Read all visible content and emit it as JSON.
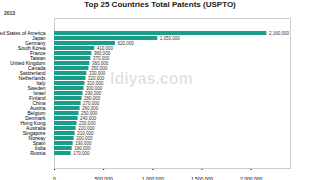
{
  "chart_data": {
    "type": "bar",
    "title": "Top 25 Countries Total Patents (USPTO)",
    "subtitle": "2013",
    "annotation": "ldiyas.com",
    "orientation": "horizontal",
    "color": "#1a9e8a",
    "data_labels": true,
    "grid": false,
    "categories": [
      "United States of America",
      "Japan",
      "Germany",
      "South Korea",
      "France",
      "Taiwan",
      "United Kingdom",
      "Canada",
      "Switzerland",
      "Netherlands",
      "Italy",
      "Sweden",
      "Israel",
      "Finland",
      "China",
      "Austria",
      "Belgium",
      "Denmark",
      "Hong Kong",
      "Australia",
      "Singapore",
      "Norway",
      "Spain",
      "India",
      "Russia"
    ],
    "values": [
      2160000,
      1050000,
      620000,
      410000,
      380000,
      370000,
      360000,
      350000,
      330000,
      320000,
      310000,
      300000,
      290000,
      280000,
      270000,
      260000,
      250000,
      240000,
      230000,
      220000,
      210000,
      200000,
      190000,
      180000,
      170000
    ],
    "value_labels": [
      "2,160,000",
      "1,050,000",
      "620,000",
      "410,000",
      "380,000",
      "370,000",
      "360,000",
      "350,000",
      "330,000",
      "320,000",
      "310,000",
      "300,000",
      "290,000",
      "280,000",
      "270,000",
      "260,000",
      "250,000",
      "240,000",
      "230,000",
      "220,000",
      "210,000",
      "200,000",
      "190,000",
      "180,000",
      "170,000"
    ],
    "xlim": [
      0,
      2400000
    ],
    "xticks": [
      0,
      {
        "value": 500000,
        "label": "500,000"
      },
      {
        "value": 1000000,
        "label": "1,000,000"
      },
      {
        "value": 1500000,
        "label": "1,500,000"
      },
      {
        "value": 2000000,
        "label": "2,000,000"
      }
    ]
  }
}
